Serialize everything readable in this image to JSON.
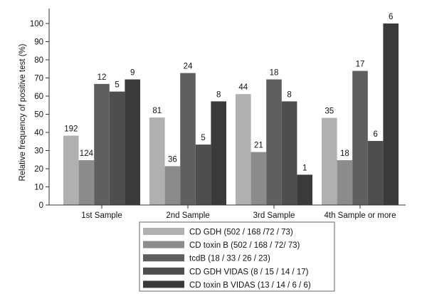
{
  "chart_data": {
    "type": "bar",
    "ylabel": "Relative frequency of positive test (%)",
    "ylim": [
      0,
      105
    ],
    "yticks": [
      0,
      10,
      20,
      30,
      40,
      50,
      60,
      70,
      80,
      90,
      100
    ],
    "ytick_labels": [
      "0",
      "10",
      "20",
      "30",
      "40",
      "50",
      "60",
      "70",
      "80",
      "90",
      "100"
    ],
    "grid": false,
    "legend_position": "bottom",
    "categories": [
      "1st Sample",
      "2nd Sample",
      "3rd Sample",
      "4th Sample or more"
    ],
    "series": [
      {
        "name": "CD GDH (502 / 168 /72 / 73)",
        "color": "#b0b0b0",
        "values": [
          38.2,
          48.2,
          61.1,
          48
        ],
        "labels": [
          "192",
          "81",
          "44",
          "35"
        ]
      },
      {
        "name": "CD toxin B (502 / 168 / 72/ 73)",
        "color": "#8c8c8c",
        "values": [
          24.7,
          21.4,
          29.2,
          24.7
        ],
        "labels": [
          "124",
          "36",
          "21",
          "18"
        ]
      },
      {
        "name": "tcdB (18 / 33 / 26 / 23)",
        "color": "#5f5f5f",
        "values": [
          66.7,
          72.7,
          69.2,
          73.9
        ],
        "labels": [
          "12",
          "24",
          "18",
          "17"
        ]
      },
      {
        "name": "CD GDH VIDAS (8 / 15 / 14 / 17)",
        "color": "#4e4e4e",
        "values": [
          62.5,
          33.3,
          57.1,
          35.3
        ],
        "labels": [
          "5",
          "5",
          "8",
          "6"
        ]
      },
      {
        "name": "CD toxin B VIDAS (13 / 14 / 6 / 6)",
        "color": "#3a3a3a",
        "values": [
          69.2,
          57.1,
          16.7,
          100
        ],
        "labels": [
          "9",
          "8",
          "1",
          "6"
        ]
      }
    ]
  }
}
